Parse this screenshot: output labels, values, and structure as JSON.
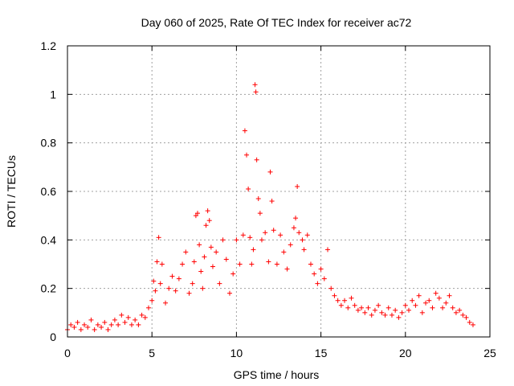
{
  "chart_data": {
    "type": "scatter",
    "title": "Day 060 of 2025, Rate Of TEC Index for receiver ac72",
    "xlabel": "GPS time / hours",
    "ylabel": "ROTI / TECUs",
    "xlim": [
      0,
      25
    ],
    "ylim": [
      0,
      1.2
    ],
    "xticks": [
      0,
      5,
      10,
      15,
      20,
      25
    ],
    "xtick_labels": [
      "0",
      "5",
      "10",
      "15",
      "20",
      "25"
    ],
    "yticks": [
      0,
      0.2,
      0.4,
      0.6,
      0.8,
      1.0,
      1.2
    ],
    "ytick_labels": [
      "0",
      "0.2",
      "0.4",
      "0.6",
      "0.8",
      "1",
      "1.2"
    ],
    "grid": true,
    "marker": "+",
    "color": "#ff0000",
    "series": [
      {
        "name": "ac72",
        "points": [
          [
            0.0,
            0.03
          ],
          [
            0.2,
            0.05
          ],
          [
            0.4,
            0.04
          ],
          [
            0.6,
            0.06
          ],
          [
            0.8,
            0.03
          ],
          [
            1.0,
            0.05
          ],
          [
            1.2,
            0.04
          ],
          [
            1.4,
            0.07
          ],
          [
            1.6,
            0.03
          ],
          [
            1.8,
            0.05
          ],
          [
            2.0,
            0.04
          ],
          [
            2.2,
            0.06
          ],
          [
            2.4,
            0.03
          ],
          [
            2.6,
            0.05
          ],
          [
            2.8,
            0.07
          ],
          [
            3.0,
            0.05
          ],
          [
            3.2,
            0.09
          ],
          [
            3.4,
            0.06
          ],
          [
            3.6,
            0.08
          ],
          [
            3.8,
            0.05
          ],
          [
            4.0,
            0.07
          ],
          [
            4.2,
            0.05
          ],
          [
            4.4,
            0.09
          ],
          [
            4.6,
            0.08
          ],
          [
            4.8,
            0.12
          ],
          [
            5.0,
            0.15
          ],
          [
            5.1,
            0.23
          ],
          [
            5.2,
            0.19
          ],
          [
            5.3,
            0.31
          ],
          [
            5.4,
            0.41
          ],
          [
            5.5,
            0.22
          ],
          [
            5.6,
            0.3
          ],
          [
            5.8,
            0.14
          ],
          [
            6.0,
            0.2
          ],
          [
            6.2,
            0.25
          ],
          [
            6.4,
            0.19
          ],
          [
            6.6,
            0.24
          ],
          [
            6.8,
            0.3
          ],
          [
            7.0,
            0.35
          ],
          [
            7.2,
            0.18
          ],
          [
            7.4,
            0.22
          ],
          [
            7.5,
            0.31
          ],
          [
            7.6,
            0.5
          ],
          [
            7.7,
            0.51
          ],
          [
            7.8,
            0.38
          ],
          [
            7.9,
            0.27
          ],
          [
            8.0,
            0.2
          ],
          [
            8.1,
            0.33
          ],
          [
            8.2,
            0.46
          ],
          [
            8.3,
            0.52
          ],
          [
            8.4,
            0.48
          ],
          [
            8.5,
            0.37
          ],
          [
            8.6,
            0.29
          ],
          [
            8.8,
            0.35
          ],
          [
            9.0,
            0.22
          ],
          [
            9.2,
            0.4
          ],
          [
            9.4,
            0.32
          ],
          [
            9.6,
            0.18
          ],
          [
            9.8,
            0.26
          ],
          [
            10.0,
            0.4
          ],
          [
            10.2,
            0.3
          ],
          [
            10.4,
            0.42
          ],
          [
            10.5,
            0.85
          ],
          [
            10.6,
            0.75
          ],
          [
            10.7,
            0.61
          ],
          [
            10.8,
            0.41
          ],
          [
            10.9,
            0.3
          ],
          [
            11.0,
            0.36
          ],
          [
            11.1,
            1.04
          ],
          [
            11.15,
            1.01
          ],
          [
            11.2,
            0.73
          ],
          [
            11.3,
            0.57
          ],
          [
            11.4,
            0.51
          ],
          [
            11.5,
            0.4
          ],
          [
            11.7,
            0.43
          ],
          [
            11.9,
            0.31
          ],
          [
            12.0,
            0.68
          ],
          [
            12.1,
            0.56
          ],
          [
            12.2,
            0.44
          ],
          [
            12.4,
            0.3
          ],
          [
            12.6,
            0.42
          ],
          [
            12.8,
            0.35
          ],
          [
            13.0,
            0.28
          ],
          [
            13.2,
            0.38
          ],
          [
            13.4,
            0.45
          ],
          [
            13.5,
            0.49
          ],
          [
            13.6,
            0.62
          ],
          [
            13.7,
            0.43
          ],
          [
            13.9,
            0.4
          ],
          [
            14.0,
            0.36
          ],
          [
            14.2,
            0.42
          ],
          [
            14.4,
            0.3
          ],
          [
            14.6,
            0.26
          ],
          [
            14.8,
            0.22
          ],
          [
            15.0,
            0.28
          ],
          [
            15.2,
            0.24
          ],
          [
            15.4,
            0.36
          ],
          [
            15.6,
            0.2
          ],
          [
            15.8,
            0.17
          ],
          [
            16.0,
            0.15
          ],
          [
            16.2,
            0.13
          ],
          [
            16.4,
            0.15
          ],
          [
            16.6,
            0.12
          ],
          [
            16.8,
            0.16
          ],
          [
            17.0,
            0.13
          ],
          [
            17.2,
            0.11
          ],
          [
            17.4,
            0.12
          ],
          [
            17.6,
            0.1
          ],
          [
            17.8,
            0.12
          ],
          [
            18.0,
            0.09
          ],
          [
            18.2,
            0.11
          ],
          [
            18.4,
            0.13
          ],
          [
            18.6,
            0.1
          ],
          [
            18.8,
            0.09
          ],
          [
            19.0,
            0.12
          ],
          [
            19.2,
            0.09
          ],
          [
            19.4,
            0.11
          ],
          [
            19.6,
            0.08
          ],
          [
            19.8,
            0.1
          ],
          [
            20.0,
            0.13
          ],
          [
            20.2,
            0.11
          ],
          [
            20.4,
            0.15
          ],
          [
            20.6,
            0.13
          ],
          [
            20.8,
            0.17
          ],
          [
            21.0,
            0.1
          ],
          [
            21.2,
            0.14
          ],
          [
            21.4,
            0.15
          ],
          [
            21.6,
            0.12
          ],
          [
            21.8,
            0.18
          ],
          [
            22.0,
            0.16
          ],
          [
            22.2,
            0.12
          ],
          [
            22.4,
            0.14
          ],
          [
            22.6,
            0.17
          ],
          [
            22.8,
            0.12
          ],
          [
            23.0,
            0.1
          ],
          [
            23.2,
            0.11
          ],
          [
            23.4,
            0.09
          ],
          [
            23.6,
            0.08
          ],
          [
            23.8,
            0.06
          ],
          [
            24.0,
            0.05
          ]
        ]
      }
    ]
  }
}
